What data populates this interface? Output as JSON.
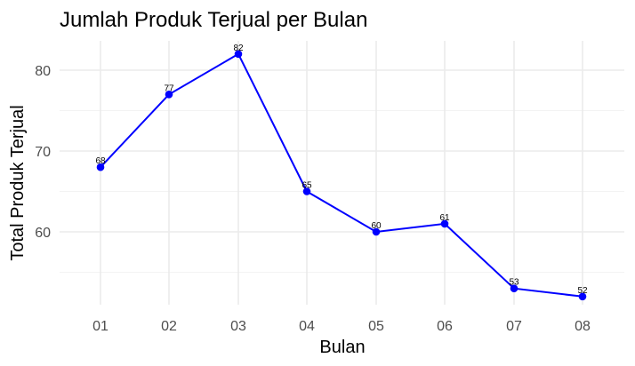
{
  "chart_data": {
    "type": "line",
    "title": "Jumlah Produk Terjual per Bulan",
    "xlabel": "Bulan",
    "ylabel": "Total Produk Terjual",
    "categories": [
      "01",
      "02",
      "03",
      "04",
      "05",
      "06",
      "07",
      "08"
    ],
    "series": [
      {
        "values": [
          68,
          77,
          82,
          65,
          60,
          61,
          53,
          52
        ],
        "color": "#0000ff"
      }
    ],
    "yticks": [
      60,
      70,
      80
    ],
    "ylim": [
      51,
      83
    ],
    "grid": true,
    "legend": "none",
    "theme": "minimal",
    "point_color": "#0000ff",
    "line_color": "#0000ff",
    "grid_color": "#ebebeb"
  }
}
